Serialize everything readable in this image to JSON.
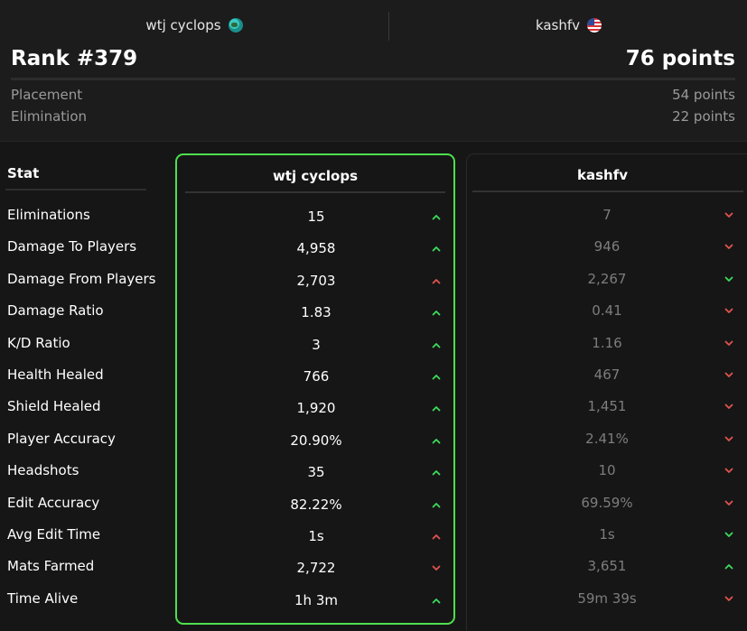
{
  "colors": {
    "up": "#3ddc5a",
    "down": "#e0534f",
    "border_highlight": "#4ee04e"
  },
  "players": [
    {
      "name": "wtj cyclops",
      "icon": "globe-icon"
    },
    {
      "name": "kashfv",
      "icon": "us-flag-icon"
    }
  ],
  "summary": {
    "rank": "Rank #379",
    "total_points": "76 points",
    "breakdown": [
      {
        "label": "Placement",
        "value": "54 points"
      },
      {
        "label": "Elimination",
        "value": "22 points"
      }
    ]
  },
  "table": {
    "stat_header": "Stat",
    "rows": [
      {
        "stat": "Eliminations",
        "p1": "15",
        "p1_dir": "up-green",
        "p2": "7",
        "p2_dir": "down-red"
      },
      {
        "stat": "Damage To Players",
        "p1": "4,958",
        "p1_dir": "up-green",
        "p2": "946",
        "p2_dir": "down-red"
      },
      {
        "stat": "Damage From Players",
        "p1": "2,703",
        "p1_dir": "up-red",
        "p2": "2,267",
        "p2_dir": "down-green"
      },
      {
        "stat": "Damage Ratio",
        "p1": "1.83",
        "p1_dir": "up-green",
        "p2": "0.41",
        "p2_dir": "down-red"
      },
      {
        "stat": "K/D Ratio",
        "p1": "3",
        "p1_dir": "up-green",
        "p2": "1.16",
        "p2_dir": "down-red"
      },
      {
        "stat": "Health Healed",
        "p1": "766",
        "p1_dir": "up-green",
        "p2": "467",
        "p2_dir": "down-red"
      },
      {
        "stat": "Shield Healed",
        "p1": "1,920",
        "p1_dir": "up-green",
        "p2": "1,451",
        "p2_dir": "down-red"
      },
      {
        "stat": "Player Accuracy",
        "p1": "20.90%",
        "p1_dir": "up-green",
        "p2": "2.41%",
        "p2_dir": "down-red"
      },
      {
        "stat": "Headshots",
        "p1": "35",
        "p1_dir": "up-green",
        "p2": "10",
        "p2_dir": "down-red"
      },
      {
        "stat": "Edit Accuracy",
        "p1": "82.22%",
        "p1_dir": "up-green",
        "p2": "69.59%",
        "p2_dir": "down-red"
      },
      {
        "stat": "Avg Edit Time",
        "p1": "1s",
        "p1_dir": "up-red",
        "p2": "1s",
        "p2_dir": "down-green"
      },
      {
        "stat": "Mats Farmed",
        "p1": "2,722",
        "p1_dir": "down-red",
        "p2": "3,651",
        "p2_dir": "up-green"
      },
      {
        "stat": "Time Alive",
        "p1": "1h 3m",
        "p1_dir": "up-green",
        "p2": "59m 39s",
        "p2_dir": "down-red"
      }
    ]
  }
}
